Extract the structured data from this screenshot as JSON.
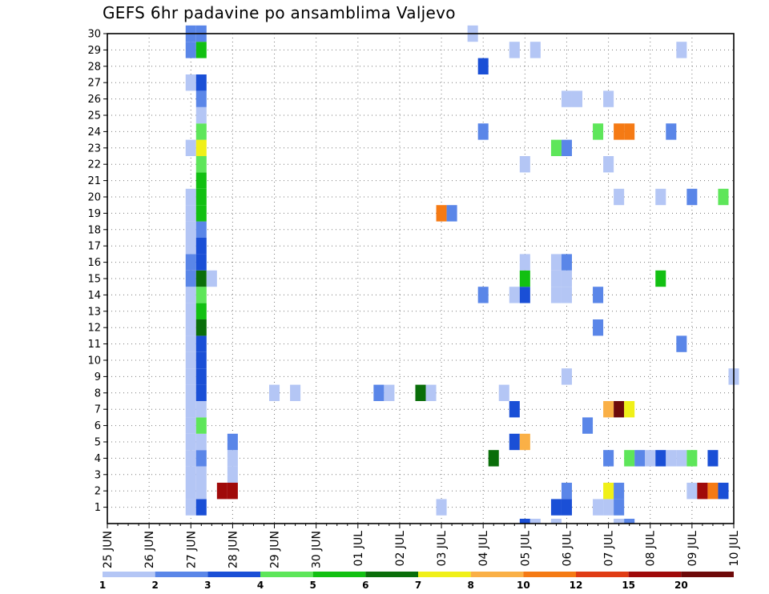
{
  "chart_data": {
    "type": "heatmap",
    "title": "GEFS 6hr padavine po ansamblima Valjevo",
    "xlabel": "",
    "ylabel": "",
    "x_tick_labels": [
      "25 JUN",
      "26 JUN",
      "27 JUN",
      "28 JUN",
      "29 JUN",
      "30 JUN",
      "01 JUL",
      "02 JUL",
      "03 JUL",
      "04 JUL",
      "05 JUL",
      "06 JUL",
      "07 JUL",
      "08 JUL",
      "09 JUL",
      "10 JUL"
    ],
    "y_tick_labels": [
      "1",
      "2",
      "3",
      "4",
      "5",
      "6",
      "7",
      "8",
      "9",
      "10",
      "11",
      "12",
      "13",
      "14",
      "15",
      "16",
      "17",
      "18",
      "19",
      "20",
      "21",
      "22",
      "23",
      "24",
      "25",
      "26",
      "27",
      "28",
      "29",
      "30"
    ],
    "ylim": [
      0,
      30
    ],
    "x_steps_per_day": 4,
    "grid": true,
    "colorbar": {
      "labels": [
        "1",
        "2",
        "3",
        "4",
        "5",
        "6",
        "7",
        "8",
        "10",
        "12",
        "15",
        "20"
      ],
      "colors": [
        "#b4c6f5",
        "#5a86e8",
        "#1a4fd6",
        "#5ee65a",
        "#12c012",
        "#0a6e0a",
        "#f0f018",
        "#fab046",
        "#f57a14",
        "#e03c14",
        "#a00a0a",
        "#6e0a0a"
      ]
    },
    "cells": [
      {
        "step": 8,
        "member": 1,
        "class": 1
      },
      {
        "step": 8,
        "member": 2,
        "class": 1
      },
      {
        "step": 8,
        "member": 3,
        "class": 1
      },
      {
        "step": 8,
        "member": 4,
        "class": 1
      },
      {
        "step": 8,
        "member": 5,
        "class": 1
      },
      {
        "step": 8,
        "member": 6,
        "class": 1
      },
      {
        "step": 8,
        "member": 7,
        "class": 1
      },
      {
        "step": 8,
        "member": 8,
        "class": 1
      },
      {
        "step": 8,
        "member": 9,
        "class": 1
      },
      {
        "step": 8,
        "member": 10,
        "class": 1
      },
      {
        "step": 8,
        "member": 11,
        "class": 1
      },
      {
        "step": 8,
        "member": 12,
        "class": 1
      },
      {
        "step": 8,
        "member": 13,
        "class": 1
      },
      {
        "step": 8,
        "member": 14,
        "class": 1
      },
      {
        "step": 8,
        "member": 15,
        "class": 2
      },
      {
        "step": 8,
        "member": 16,
        "class": 2
      },
      {
        "step": 8,
        "member": 17,
        "class": 1
      },
      {
        "step": 8,
        "member": 18,
        "class": 1
      },
      {
        "step": 8,
        "member": 19,
        "class": 1
      },
      {
        "step": 8,
        "member": 20,
        "class": 1
      },
      {
        "step": 8,
        "member": 23,
        "class": 1
      },
      {
        "step": 8,
        "member": 27,
        "class": 1
      },
      {
        "step": 8,
        "member": 29,
        "class": 2
      },
      {
        "step": 8,
        "member": 30,
        "class": 2
      },
      {
        "step": 9,
        "member": 1,
        "class": 3
      },
      {
        "step": 9,
        "member": 2,
        "class": 1
      },
      {
        "step": 9,
        "member": 3,
        "class": 1
      },
      {
        "step": 9,
        "member": 4,
        "class": 2
      },
      {
        "step": 9,
        "member": 5,
        "class": 1
      },
      {
        "step": 9,
        "member": 6,
        "class": 4
      },
      {
        "step": 9,
        "member": 7,
        "class": 1
      },
      {
        "step": 9,
        "member": 8,
        "class": 3
      },
      {
        "step": 9,
        "member": 9,
        "class": 3
      },
      {
        "step": 9,
        "member": 10,
        "class": 3
      },
      {
        "step": 9,
        "member": 11,
        "class": 3
      },
      {
        "step": 9,
        "member": 12,
        "class": 6
      },
      {
        "step": 9,
        "member": 13,
        "class": 5
      },
      {
        "step": 9,
        "member": 14,
        "class": 4
      },
      {
        "step": 9,
        "member": 15,
        "class": 6
      },
      {
        "step": 9,
        "member": 16,
        "class": 3
      },
      {
        "step": 9,
        "member": 17,
        "class": 3
      },
      {
        "step": 9,
        "member": 18,
        "class": 2
      },
      {
        "step": 9,
        "member": 19,
        "class": 5
      },
      {
        "step": 9,
        "member": 20,
        "class": 5
      },
      {
        "step": 9,
        "member": 21,
        "class": 5
      },
      {
        "step": 9,
        "member": 22,
        "class": 4
      },
      {
        "step": 9,
        "member": 23,
        "class": 7
      },
      {
        "step": 9,
        "member": 24,
        "class": 4
      },
      {
        "step": 9,
        "member": 25,
        "class": 1
      },
      {
        "step": 9,
        "member": 26,
        "class": 2
      },
      {
        "step": 9,
        "member": 27,
        "class": 3
      },
      {
        "step": 9,
        "member": 29,
        "class": 5
      },
      {
        "step": 9,
        "member": 30,
        "class": 2
      },
      {
        "step": 10,
        "member": 15,
        "class": 1
      },
      {
        "step": 11,
        "member": 2,
        "class": 11
      },
      {
        "step": 12,
        "member": 2,
        "class": 11
      },
      {
        "step": 12,
        "member": 3,
        "class": 1
      },
      {
        "step": 12,
        "member": 4,
        "class": 1
      },
      {
        "step": 12,
        "member": 5,
        "class": 2
      },
      {
        "step": 16,
        "member": 8,
        "class": 1
      },
      {
        "step": 18,
        "member": 8,
        "class": 1
      },
      {
        "step": 26,
        "member": 8,
        "class": 2
      },
      {
        "step": 27,
        "member": 8,
        "class": 1
      },
      {
        "step": 30,
        "member": 8,
        "class": 6
      },
      {
        "step": 31,
        "member": 8,
        "class": 1
      },
      {
        "step": 32,
        "member": 1,
        "class": 1
      },
      {
        "step": 32,
        "member": 19,
        "class": 9
      },
      {
        "step": 33,
        "member": 19,
        "class": 2
      },
      {
        "step": 35,
        "member": 30,
        "class": 1
      },
      {
        "step": 36,
        "member": 28,
        "class": 3
      },
      {
        "step": 36,
        "member": 24,
        "class": 2
      },
      {
        "step": 36,
        "member": 14,
        "class": 2
      },
      {
        "step": 37,
        "member": 4,
        "class": 6
      },
      {
        "step": 38,
        "member": 8,
        "class": 1
      },
      {
        "step": 39,
        "member": 7,
        "class": 3
      },
      {
        "step": 39,
        "member": 5,
        "class": 3
      },
      {
        "step": 39,
        "member": 14,
        "class": 1
      },
      {
        "step": 39,
        "member": 29,
        "class": 1
      },
      {
        "step": 40,
        "member": 14,
        "class": 3
      },
      {
        "step": 40,
        "member": 15,
        "class": 5
      },
      {
        "step": 40,
        "member": 16,
        "class": 1
      },
      {
        "step": 40,
        "member": 22,
        "class": 1
      },
      {
        "step": 40,
        "member": 5,
        "class": 8
      },
      {
        "step": 40,
        "member": 0,
        "class": 3
      },
      {
        "step": 41,
        "member": 0,
        "class": 1
      },
      {
        "step": 41,
        "member": 29,
        "class": 1
      },
      {
        "step": 43,
        "member": 1,
        "class": 3
      },
      {
        "step": 43,
        "member": 14,
        "class": 1
      },
      {
        "step": 43,
        "member": 15,
        "class": 1
      },
      {
        "step": 43,
        "member": 16,
        "class": 1
      },
      {
        "step": 43,
        "member": 23,
        "class": 4
      },
      {
        "step": 43,
        "member": 0,
        "class": 1
      },
      {
        "step": 44,
        "member": 1,
        "class": 3
      },
      {
        "step": 44,
        "member": 2,
        "class": 2
      },
      {
        "step": 44,
        "member": 14,
        "class": 1
      },
      {
        "step": 44,
        "member": 15,
        "class": 1
      },
      {
        "step": 44,
        "member": 16,
        "class": 2
      },
      {
        "step": 44,
        "member": 23,
        "class": 2
      },
      {
        "step": 44,
        "member": 26,
        "class": 1
      },
      {
        "step": 44,
        "member": 9,
        "class": 1
      },
      {
        "step": 45,
        "member": 26,
        "class": 1
      },
      {
        "step": 46,
        "member": 6,
        "class": 2
      },
      {
        "step": 47,
        "member": 1,
        "class": 1
      },
      {
        "step": 47,
        "member": 14,
        "class": 2
      },
      {
        "step": 47,
        "member": 12,
        "class": 2
      },
      {
        "step": 47,
        "member": 24,
        "class": 4
      },
      {
        "step": 48,
        "member": 1,
        "class": 1
      },
      {
        "step": 48,
        "member": 2,
        "class": 7
      },
      {
        "step": 48,
        "member": 4,
        "class": 2
      },
      {
        "step": 48,
        "member": 7,
        "class": 8
      },
      {
        "step": 48,
        "member": 22,
        "class": 1
      },
      {
        "step": 48,
        "member": 26,
        "class": 1
      },
      {
        "step": 49,
        "member": 0,
        "class": 1
      },
      {
        "step": 49,
        "member": 1,
        "class": 2
      },
      {
        "step": 49,
        "member": 2,
        "class": 2
      },
      {
        "step": 49,
        "member": 7,
        "class": 12
      },
      {
        "step": 49,
        "member": 20,
        "class": 1
      },
      {
        "step": 49,
        "member": 24,
        "class": 9
      },
      {
        "step": 50,
        "member": 4,
        "class": 4
      },
      {
        "step": 50,
        "member": 7,
        "class": 7
      },
      {
        "step": 50,
        "member": 24,
        "class": 9
      },
      {
        "step": 50,
        "member": 0,
        "class": 2
      },
      {
        "step": 51,
        "member": 4,
        "class": 2
      },
      {
        "step": 52,
        "member": 4,
        "class": 1
      },
      {
        "step": 53,
        "member": 4,
        "class": 3
      },
      {
        "step": 53,
        "member": 15,
        "class": 5
      },
      {
        "step": 53,
        "member": 20,
        "class": 1
      },
      {
        "step": 54,
        "member": 4,
        "class": 1
      },
      {
        "step": 54,
        "member": 24,
        "class": 2
      },
      {
        "step": 55,
        "member": 4,
        "class": 1
      },
      {
        "step": 55,
        "member": 11,
        "class": 2
      },
      {
        "step": 55,
        "member": 29,
        "class": 1
      },
      {
        "step": 56,
        "member": 2,
        "class": 1
      },
      {
        "step": 56,
        "member": 4,
        "class": 4
      },
      {
        "step": 56,
        "member": 20,
        "class": 2
      },
      {
        "step": 57,
        "member": 2,
        "class": 11
      },
      {
        "step": 58,
        "member": 2,
        "class": 9
      },
      {
        "step": 58,
        "member": 4,
        "class": 3
      },
      {
        "step": 59,
        "member": 2,
        "class": 3
      },
      {
        "step": 59,
        "member": 20,
        "class": 4
      },
      {
        "step": 60,
        "member": 9,
        "class": 1
      }
    ]
  }
}
